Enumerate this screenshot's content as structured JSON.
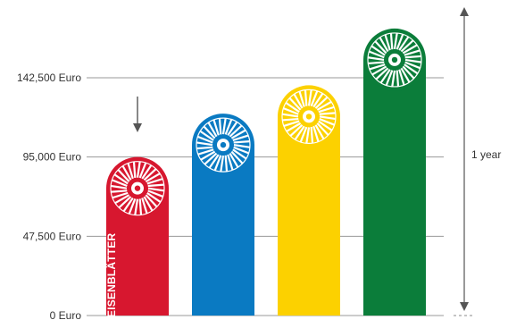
{
  "chart_data": {
    "type": "bar",
    "title": "",
    "xlabel": "",
    "ylabel": "",
    "ylim": [
      0,
      175000
    ],
    "y_ticks": [
      {
        "value": 0,
        "label": "0 Euro"
      },
      {
        "value": 47500,
        "label": "47,500 Euro"
      },
      {
        "value": 95000,
        "label": "95,000 Euro"
      },
      {
        "value": 142500,
        "label": "142,500 Euro"
      }
    ],
    "grid": true,
    "categories": [
      "",
      "",
      "",
      ""
    ],
    "values": [
      95000,
      121000,
      138000,
      172000
    ],
    "colors": [
      "#d7172f",
      "#0a7ac2",
      "#fcd100",
      "#0b7d3a"
    ],
    "bar_label": "EISENBLÄTTER",
    "annotations": {
      "marker": "down-arrow-icon",
      "period_label": "1 year"
    }
  }
}
